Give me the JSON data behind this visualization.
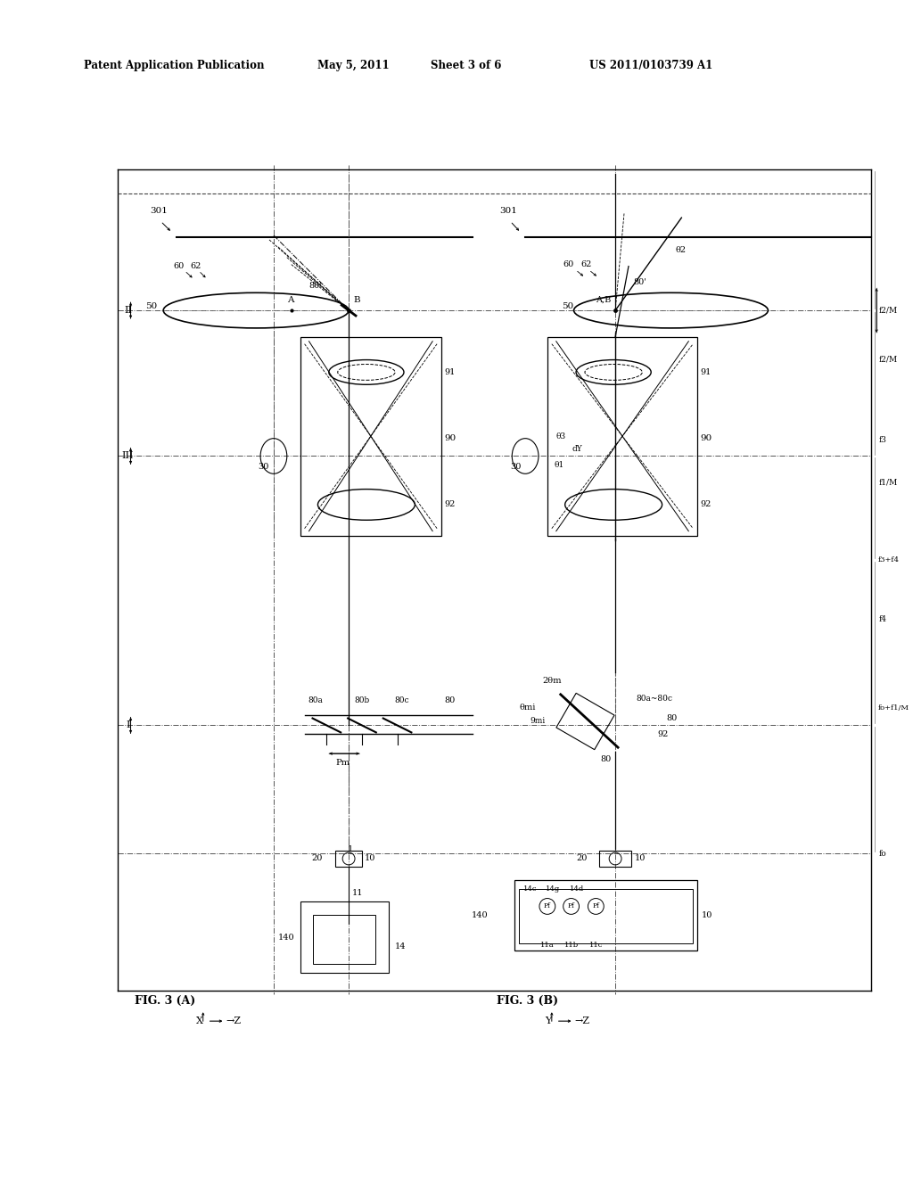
{
  "bg_color": "#ffffff",
  "header_text": "Patent Application Publication",
  "header_date": "May 5, 2011",
  "header_sheet": "Sheet 3 of 6",
  "header_patent": "US 2011/0103739 A1",
  "fig_label_A": "FIG. 3 (A)",
  "fig_label_B": "FIG. 3 (B)",
  "lc": "#000000"
}
